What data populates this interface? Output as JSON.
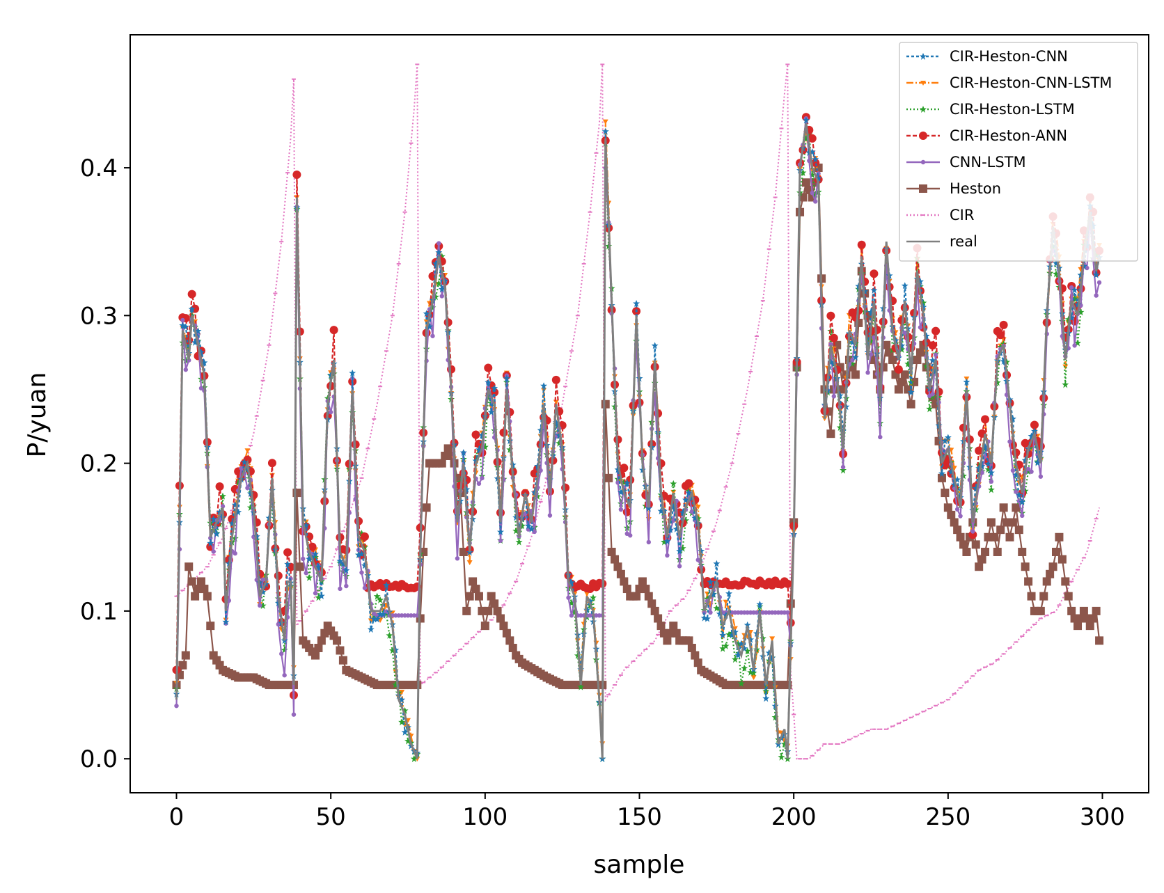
{
  "chart_data": {
    "type": "line",
    "xlabel": "sample",
    "ylabel": "P/yuan",
    "xlim": [
      -15,
      315
    ],
    "ylim": [
      -0.023,
      0.49
    ],
    "x_ticks": [
      0,
      50,
      100,
      150,
      200,
      250,
      300
    ],
    "y_ticks": [
      0.0,
      0.1,
      0.2,
      0.3,
      0.4
    ],
    "x_tick_labels": [
      "0",
      "50",
      "100",
      "150",
      "200",
      "250",
      "300"
    ],
    "y_tick_labels": [
      "0.0",
      "0.1",
      "0.2",
      "0.3",
      "0.4"
    ],
    "grid": false,
    "legend_position": "upper-right",
    "series_keys": [
      {
        "id": "cnn",
        "name": "CIR-Heston-CNN",
        "color": "#1f77b4",
        "dash": "4,3",
        "marker": "star"
      },
      {
        "id": "cnnlstm",
        "name": "CIR-Heston-CNN-LSTM",
        "color": "#ff7f0e",
        "dash": "10,3,2,3",
        "marker": "tri"
      },
      {
        "id": "lstm",
        "name": "CIR-Heston-LSTM",
        "color": "#2ca02c",
        "dash": "2,3",
        "marker": "star"
      },
      {
        "id": "ann",
        "name": "CIR-Heston-ANN",
        "color": "#d62728",
        "dash": "6,3",
        "marker": "circle"
      },
      {
        "id": "cl",
        "name": "CNN-LSTM",
        "color": "#9467bd",
        "dash": "",
        "marker": "dot"
      },
      {
        "id": "heston",
        "name": "Heston",
        "color": "#8c564b",
        "dash": "",
        "marker": "square"
      },
      {
        "id": "cir",
        "name": "CIR",
        "color": "#e377c2",
        "dash": "2,3",
        "marker": "dash"
      },
      {
        "id": "real",
        "name": "real",
        "color": "#7f7f7f",
        "dash": "",
        "marker": "none"
      }
    ],
    "real_keypoints": [
      [
        0,
        0.04
      ],
      [
        2,
        0.29
      ],
      [
        4,
        0.27
      ],
      [
        5,
        0.3
      ],
      [
        7,
        0.28
      ],
      [
        9,
        0.26
      ],
      [
        11,
        0.15
      ],
      [
        13,
        0.16
      ],
      [
        15,
        0.17
      ],
      [
        16,
        0.1
      ],
      [
        18,
        0.15
      ],
      [
        21,
        0.19
      ],
      [
        23,
        0.2
      ],
      [
        25,
        0.17
      ],
      [
        27,
        0.11
      ],
      [
        29,
        0.12
      ],
      [
        31,
        0.19
      ],
      [
        33,
        0.11
      ],
      [
        35,
        0.08
      ],
      [
        36,
        0.12
      ],
      [
        37,
        0.12
      ],
      [
        38,
        0.05
      ],
      [
        39,
        0.38
      ],
      [
        41,
        0.16
      ],
      [
        43,
        0.14
      ],
      [
        45,
        0.13
      ],
      [
        47,
        0.12
      ],
      [
        49,
        0.24
      ],
      [
        51,
        0.27
      ],
      [
        53,
        0.14
      ],
      [
        55,
        0.13
      ],
      [
        57,
        0.25
      ],
      [
        59,
        0.15
      ],
      [
        61,
        0.14
      ],
      [
        63,
        0.1
      ],
      [
        66,
        0.1
      ],
      [
        68,
        0.11
      ],
      [
        70,
        0.09
      ],
      [
        72,
        0.04
      ],
      [
        74,
        0.03
      ],
      [
        76,
        0.01
      ],
      [
        78,
        0.0
      ],
      [
        79,
        0.14
      ],
      [
        81,
        0.29
      ],
      [
        83,
        0.31
      ],
      [
        85,
        0.34
      ],
      [
        87,
        0.32
      ],
      [
        89,
        0.25
      ],
      [
        91,
        0.16
      ],
      [
        93,
        0.2
      ],
      [
        95,
        0.14
      ],
      [
        97,
        0.2
      ],
      [
        99,
        0.21
      ],
      [
        101,
        0.25
      ],
      [
        103,
        0.24
      ],
      [
        105,
        0.16
      ],
      [
        107,
        0.25
      ],
      [
        109,
        0.19
      ],
      [
        111,
        0.15
      ],
      [
        113,
        0.18
      ],
      [
        115,
        0.16
      ],
      [
        117,
        0.19
      ],
      [
        119,
        0.24
      ],
      [
        121,
        0.18
      ],
      [
        123,
        0.24
      ],
      [
        125,
        0.21
      ],
      [
        127,
        0.12
      ],
      [
        129,
        0.11
      ],
      [
        131,
        0.05
      ],
      [
        133,
        0.11
      ],
      [
        135,
        0.1
      ],
      [
        137,
        0.04
      ],
      [
        138,
        0.0
      ],
      [
        139,
        0.42
      ],
      [
        141,
        0.31
      ],
      [
        143,
        0.2
      ],
      [
        145,
        0.18
      ],
      [
        147,
        0.17
      ],
      [
        149,
        0.3
      ],
      [
        151,
        0.2
      ],
      [
        153,
        0.17
      ],
      [
        155,
        0.27
      ],
      [
        157,
        0.18
      ],
      [
        159,
        0.15
      ],
      [
        161,
        0.18
      ],
      [
        163,
        0.15
      ],
      [
        165,
        0.17
      ],
      [
        167,
        0.18
      ],
      [
        169,
        0.16
      ],
      [
        171,
        0.1
      ],
      [
        173,
        0.11
      ],
      [
        175,
        0.12
      ],
      [
        177,
        0.09
      ],
      [
        179,
        0.1
      ],
      [
        181,
        0.08
      ],
      [
        183,
        0.07
      ],
      [
        185,
        0.09
      ],
      [
        187,
        0.06
      ],
      [
        189,
        0.1
      ],
      [
        191,
        0.05
      ],
      [
        193,
        0.08
      ],
      [
        195,
        0.01
      ],
      [
        197,
        0.02
      ],
      [
        198,
        0.0
      ],
      [
        200,
        0.15
      ],
      [
        202,
        0.4
      ],
      [
        204,
        0.43
      ],
      [
        206,
        0.4
      ],
      [
        208,
        0.39
      ],
      [
        210,
        0.23
      ],
      [
        212,
        0.28
      ],
      [
        214,
        0.26
      ],
      [
        216,
        0.21
      ],
      [
        218,
        0.29
      ],
      [
        220,
        0.28
      ],
      [
        222,
        0.34
      ],
      [
        224,
        0.27
      ],
      [
        226,
        0.31
      ],
      [
        228,
        0.24
      ],
      [
        230,
        0.35
      ],
      [
        232,
        0.29
      ],
      [
        234,
        0.27
      ],
      [
        236,
        0.31
      ],
      [
        238,
        0.26
      ],
      [
        240,
        0.33
      ],
      [
        242,
        0.3
      ],
      [
        244,
        0.25
      ],
      [
        246,
        0.27
      ],
      [
        248,
        0.2
      ],
      [
        250,
        0.21
      ],
      [
        252,
        0.19
      ],
      [
        254,
        0.17
      ],
      [
        256,
        0.25
      ],
      [
        258,
        0.16
      ],
      [
        260,
        0.19
      ],
      [
        262,
        0.22
      ],
      [
        264,
        0.2
      ],
      [
        266,
        0.27
      ],
      [
        268,
        0.28
      ],
      [
        270,
        0.24
      ],
      [
        272,
        0.2
      ],
      [
        274,
        0.18
      ],
      [
        276,
        0.21
      ],
      [
        278,
        0.22
      ],
      [
        280,
        0.2
      ],
      [
        282,
        0.3
      ],
      [
        284,
        0.36
      ],
      [
        286,
        0.33
      ],
      [
        288,
        0.27
      ],
      [
        290,
        0.31
      ],
      [
        292,
        0.3
      ],
      [
        294,
        0.34
      ],
      [
        296,
        0.37
      ],
      [
        298,
        0.33
      ],
      [
        299,
        0.34
      ]
    ],
    "heston_keypoints": [
      [
        0,
        0.05
      ],
      [
        3,
        0.07
      ],
      [
        4,
        0.13
      ],
      [
        6,
        0.11
      ],
      [
        8,
        0.12
      ],
      [
        10,
        0.11
      ],
      [
        12,
        0.07
      ],
      [
        15,
        0.06
      ],
      [
        20,
        0.055
      ],
      [
        25,
        0.055
      ],
      [
        30,
        0.05
      ],
      [
        38,
        0.05
      ],
      [
        39,
        0.18
      ],
      [
        41,
        0.08
      ],
      [
        45,
        0.07
      ],
      [
        49,
        0.09
      ],
      [
        52,
        0.08
      ],
      [
        55,
        0.06
      ],
      [
        60,
        0.055
      ],
      [
        65,
        0.05
      ],
      [
        78,
        0.05
      ],
      [
        80,
        0.14
      ],
      [
        82,
        0.2
      ],
      [
        86,
        0.2
      ],
      [
        88,
        0.21
      ],
      [
        90,
        0.2
      ],
      [
        92,
        0.18
      ],
      [
        94,
        0.1
      ],
      [
        96,
        0.12
      ],
      [
        98,
        0.11
      ],
      [
        100,
        0.09
      ],
      [
        102,
        0.11
      ],
      [
        104,
        0.1
      ],
      [
        106,
        0.09
      ],
      [
        108,
        0.08
      ],
      [
        110,
        0.07
      ],
      [
        112,
        0.065
      ],
      [
        116,
        0.06
      ],
      [
        120,
        0.055
      ],
      [
        125,
        0.05
      ],
      [
        138,
        0.05
      ],
      [
        139,
        0.24
      ],
      [
        141,
        0.14
      ],
      [
        143,
        0.13
      ],
      [
        145,
        0.12
      ],
      [
        147,
        0.11
      ],
      [
        149,
        0.11
      ],
      [
        151,
        0.12
      ],
      [
        153,
        0.11
      ],
      [
        155,
        0.1
      ],
      [
        157,
        0.09
      ],
      [
        159,
        0.08
      ],
      [
        161,
        0.09
      ],
      [
        163,
        0.08
      ],
      [
        166,
        0.08
      ],
      [
        168,
        0.07
      ],
      [
        170,
        0.06
      ],
      [
        174,
        0.055
      ],
      [
        178,
        0.05
      ],
      [
        198,
        0.05
      ],
      [
        200,
        0.16
      ],
      [
        202,
        0.37
      ],
      [
        204,
        0.39
      ],
      [
        206,
        0.38
      ],
      [
        208,
        0.4
      ],
      [
        210,
        0.25
      ],
      [
        212,
        0.22
      ],
      [
        214,
        0.28
      ],
      [
        216,
        0.25
      ],
      [
        218,
        0.27
      ],
      [
        220,
        0.26
      ],
      [
        222,
        0.33
      ],
      [
        224,
        0.3
      ],
      [
        226,
        0.27
      ],
      [
        228,
        0.25
      ],
      [
        230,
        0.28
      ],
      [
        232,
        0.27
      ],
      [
        234,
        0.25
      ],
      [
        236,
        0.26
      ],
      [
        238,
        0.24
      ],
      [
        240,
        0.27
      ],
      [
        242,
        0.28
      ],
      [
        244,
        0.25
      ],
      [
        246,
        0.24
      ],
      [
        248,
        0.19
      ],
      [
        250,
        0.17
      ],
      [
        252,
        0.16
      ],
      [
        254,
        0.15
      ],
      [
        256,
        0.14
      ],
      [
        258,
        0.16
      ],
      [
        260,
        0.13
      ],
      [
        262,
        0.14
      ],
      [
        264,
        0.16
      ],
      [
        266,
        0.14
      ],
      [
        268,
        0.17
      ],
      [
        270,
        0.15
      ],
      [
        272,
        0.17
      ],
      [
        274,
        0.14
      ],
      [
        276,
        0.12
      ],
      [
        278,
        0.1
      ],
      [
        280,
        0.1
      ],
      [
        282,
        0.12
      ],
      [
        284,
        0.13
      ],
      [
        286,
        0.15
      ],
      [
        288,
        0.12
      ],
      [
        290,
        0.1
      ],
      [
        292,
        0.09
      ],
      [
        294,
        0.1
      ],
      [
        296,
        0.09
      ],
      [
        298,
        0.1
      ],
      [
        299,
        0.08
      ]
    ],
    "cir_keypoints": [
      [
        0,
        0.11
      ],
      [
        5,
        0.12
      ],
      [
        10,
        0.13
      ],
      [
        15,
        0.15
      ],
      [
        20,
        0.18
      ],
      [
        25,
        0.22
      ],
      [
        30,
        0.28
      ],
      [
        34,
        0.35
      ],
      [
        37,
        0.42
      ],
      [
        38,
        0.46
      ],
      [
        39,
        0.09
      ],
      [
        45,
        0.11
      ],
      [
        50,
        0.13
      ],
      [
        55,
        0.16
      ],
      [
        60,
        0.19
      ],
      [
        65,
        0.24
      ],
      [
        70,
        0.3
      ],
      [
        74,
        0.37
      ],
      [
        77,
        0.44
      ],
      [
        78,
        0.47
      ],
      [
        79,
        0.05
      ],
      [
        85,
        0.06
      ],
      [
        90,
        0.07
      ],
      [
        95,
        0.08
      ],
      [
        100,
        0.09
      ],
      [
        105,
        0.1
      ],
      [
        110,
        0.12
      ],
      [
        115,
        0.15
      ],
      [
        120,
        0.19
      ],
      [
        125,
        0.24
      ],
      [
        130,
        0.3
      ],
      [
        134,
        0.37
      ],
      [
        137,
        0.43
      ],
      [
        138,
        0.47
      ],
      [
        139,
        0.04
      ],
      [
        145,
        0.06
      ],
      [
        150,
        0.07
      ],
      [
        155,
        0.08
      ],
      [
        160,
        0.1
      ],
      [
        165,
        0.11
      ],
      [
        170,
        0.13
      ],
      [
        175,
        0.16
      ],
      [
        180,
        0.2
      ],
      [
        185,
        0.25
      ],
      [
        190,
        0.31
      ],
      [
        194,
        0.38
      ],
      [
        197,
        0.45
      ],
      [
        198,
        0.47
      ],
      [
        199,
        0.06
      ],
      [
        201,
        0.0
      ],
      [
        205,
        0.0
      ],
      [
        210,
        0.01
      ],
      [
        215,
        0.01
      ],
      [
        220,
        0.015
      ],
      [
        225,
        0.02
      ],
      [
        230,
        0.02
      ],
      [
        235,
        0.025
      ],
      [
        240,
        0.03
      ],
      [
        245,
        0.035
      ],
      [
        250,
        0.04
      ],
      [
        255,
        0.05
      ],
      [
        260,
        0.06
      ],
      [
        265,
        0.065
      ],
      [
        270,
        0.075
      ],
      [
        275,
        0.085
      ],
      [
        280,
        0.095
      ],
      [
        285,
        0.1
      ],
      [
        290,
        0.12
      ],
      [
        295,
        0.14
      ],
      [
        299,
        0.17
      ]
    ],
    "ann_flat_segments": [
      [
        62,
        78,
        0.117
      ],
      [
        128,
        138,
        0.117
      ],
      [
        171,
        198,
        0.119
      ]
    ]
  }
}
